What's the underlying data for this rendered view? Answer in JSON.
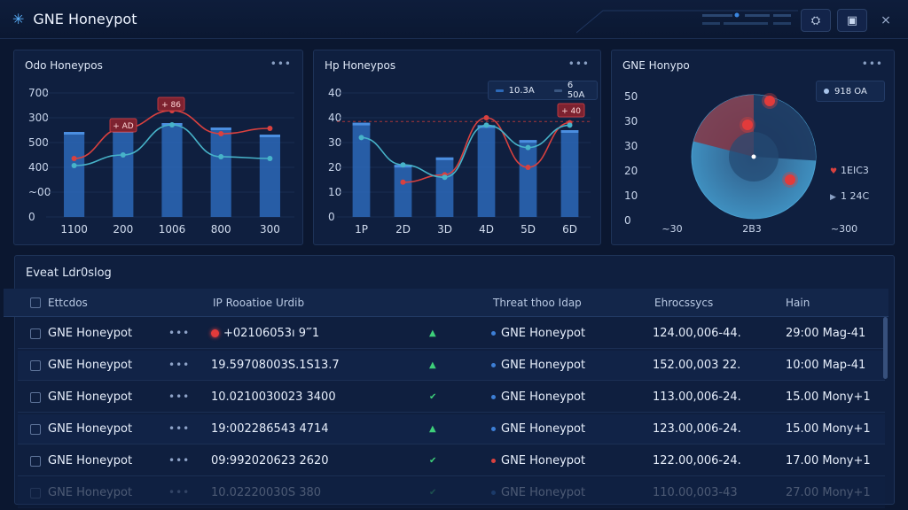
{
  "app": {
    "title": "GNE Honeypot"
  },
  "colors": {
    "bg": "#0b1730",
    "panel": "#0f1f3f",
    "bar": "#2c69b8",
    "red": "#d9413f",
    "teal": "#47b3c9",
    "green": "#3ed07a"
  },
  "charts": [
    {
      "title": "Odo Honeypos",
      "chart_data": {
        "type": "bar",
        "categories": [
          "1100",
          "200",
          "1006",
          "800",
          "300"
        ],
        "values": [
          480,
          490,
          530,
          505,
          465
        ],
        "series": [
          {
            "values": [
              330,
              500,
              600,
              470,
              500
            ],
            "color": "#d9413f"
          },
          {
            "values": [
              290,
              350,
              520,
              340,
              330
            ],
            "color": "#47b3c9"
          }
        ],
        "ylabels": [
          "0",
          "~00",
          "400",
          "500",
          "300",
          "700"
        ],
        "ylim": [
          0,
          700
        ],
        "annotations": [
          "+ AD",
          "+ 86"
        ]
      }
    },
    {
      "title": "Hp Honeypos",
      "legend": [
        {
          "label": "10.3A",
          "color": "#2c69b8"
        },
        {
          "label": "6 50A",
          "color": "#3a5680"
        }
      ],
      "chart_data": {
        "type": "bar",
        "categories": [
          "1P",
          "2D",
          "3D",
          "4D",
          "5D",
          "6D"
        ],
        "values": [
          38,
          21,
          24,
          37,
          31,
          35
        ],
        "series": [
          {
            "values": [
              null,
              14,
              17,
              40,
              20,
              38
            ],
            "color": "#d9413f"
          },
          {
            "values": [
              32,
              21,
              16,
              37,
              28,
              37
            ],
            "color": "#47b3c9"
          }
        ],
        "ylabels": [
          "0",
          "10",
          "20",
          "30",
          "40",
          "40"
        ],
        "ylim": [
          0,
          50
        ],
        "annotations": [
          "+ 40"
        ]
      }
    },
    {
      "title": "GNE Honypo",
      "legend": [
        {
          "label": "918 OA",
          "color": "#a8c4ea"
        }
      ],
      "chart_data": {
        "type": "pie",
        "ylabels": [
          "0",
          "10",
          "20",
          "30",
          "30",
          "50"
        ],
        "xlabels": [
          "~30",
          "2B3",
          "~300"
        ],
        "side_labels": [
          "1EIC3",
          "1 24C"
        ]
      }
    }
  ],
  "events": {
    "title": "Eveat Ldr0slog",
    "columns": [
      "Ettcdos",
      "IP Rooatioe Urdib",
      "Threat thoo Idap",
      "Ehrocssycs",
      "Hain"
    ],
    "rows": [
      {
        "name": "GNE Honeypot",
        "ip": "+02106053ı 9‴1",
        "flag": true,
        "arrow": "▲",
        "arrow_type": "up",
        "threat": "GNE Honeypot",
        "threat_color": "#3d7fd6",
        "ehr": "124.00,006-44.",
        "time": "29:00 Mag-41"
      },
      {
        "name": "GNE Honeypot",
        "ip": "19.59708003S.1S13.7",
        "flag": false,
        "arrow": "▲",
        "arrow_type": "up",
        "threat": "GNE Honeypot",
        "threat_color": "#3d7fd6",
        "ehr": "152.00,003 22.",
        "time": "10:00 Map-41"
      },
      {
        "name": "GNE Honeypot",
        "ip": "10.0210030023 3400",
        "flag": false,
        "arrow": "✔",
        "arrow_type": "check",
        "threat": "GNE Honeypot",
        "threat_color": "#3d7fd6",
        "ehr": "113.00,006-24.",
        "time": "15.00 Mony+1"
      },
      {
        "name": "GNE Honeypot",
        "ip": "19:002286543 4714",
        "flag": false,
        "arrow": "▲",
        "arrow_type": "up",
        "threat": "GNE Honeypot",
        "threat_color": "#3d7fd6",
        "ehr": "123.00,006-24.",
        "time": "15.00 Mony+1"
      },
      {
        "name": "GNE Honeypot",
        "ip": "09:992020623 2620",
        "flag": false,
        "arrow": "✔",
        "arrow_type": "check",
        "threat": "GNE Honeypot",
        "threat_color": "#d9413f",
        "ehr": "122.00,006-24.",
        "time": "17.00 Mony+1"
      },
      {
        "name": "GNE Honeypot",
        "ip": "10.02220030S 380",
        "flag": false,
        "arrow": "✔",
        "arrow_type": "check",
        "threat": "GNE Honeypot",
        "threat_color": "#3d7fd6",
        "ehr": "110.00,003-43",
        "time": "27.00 Mony+1"
      }
    ]
  }
}
